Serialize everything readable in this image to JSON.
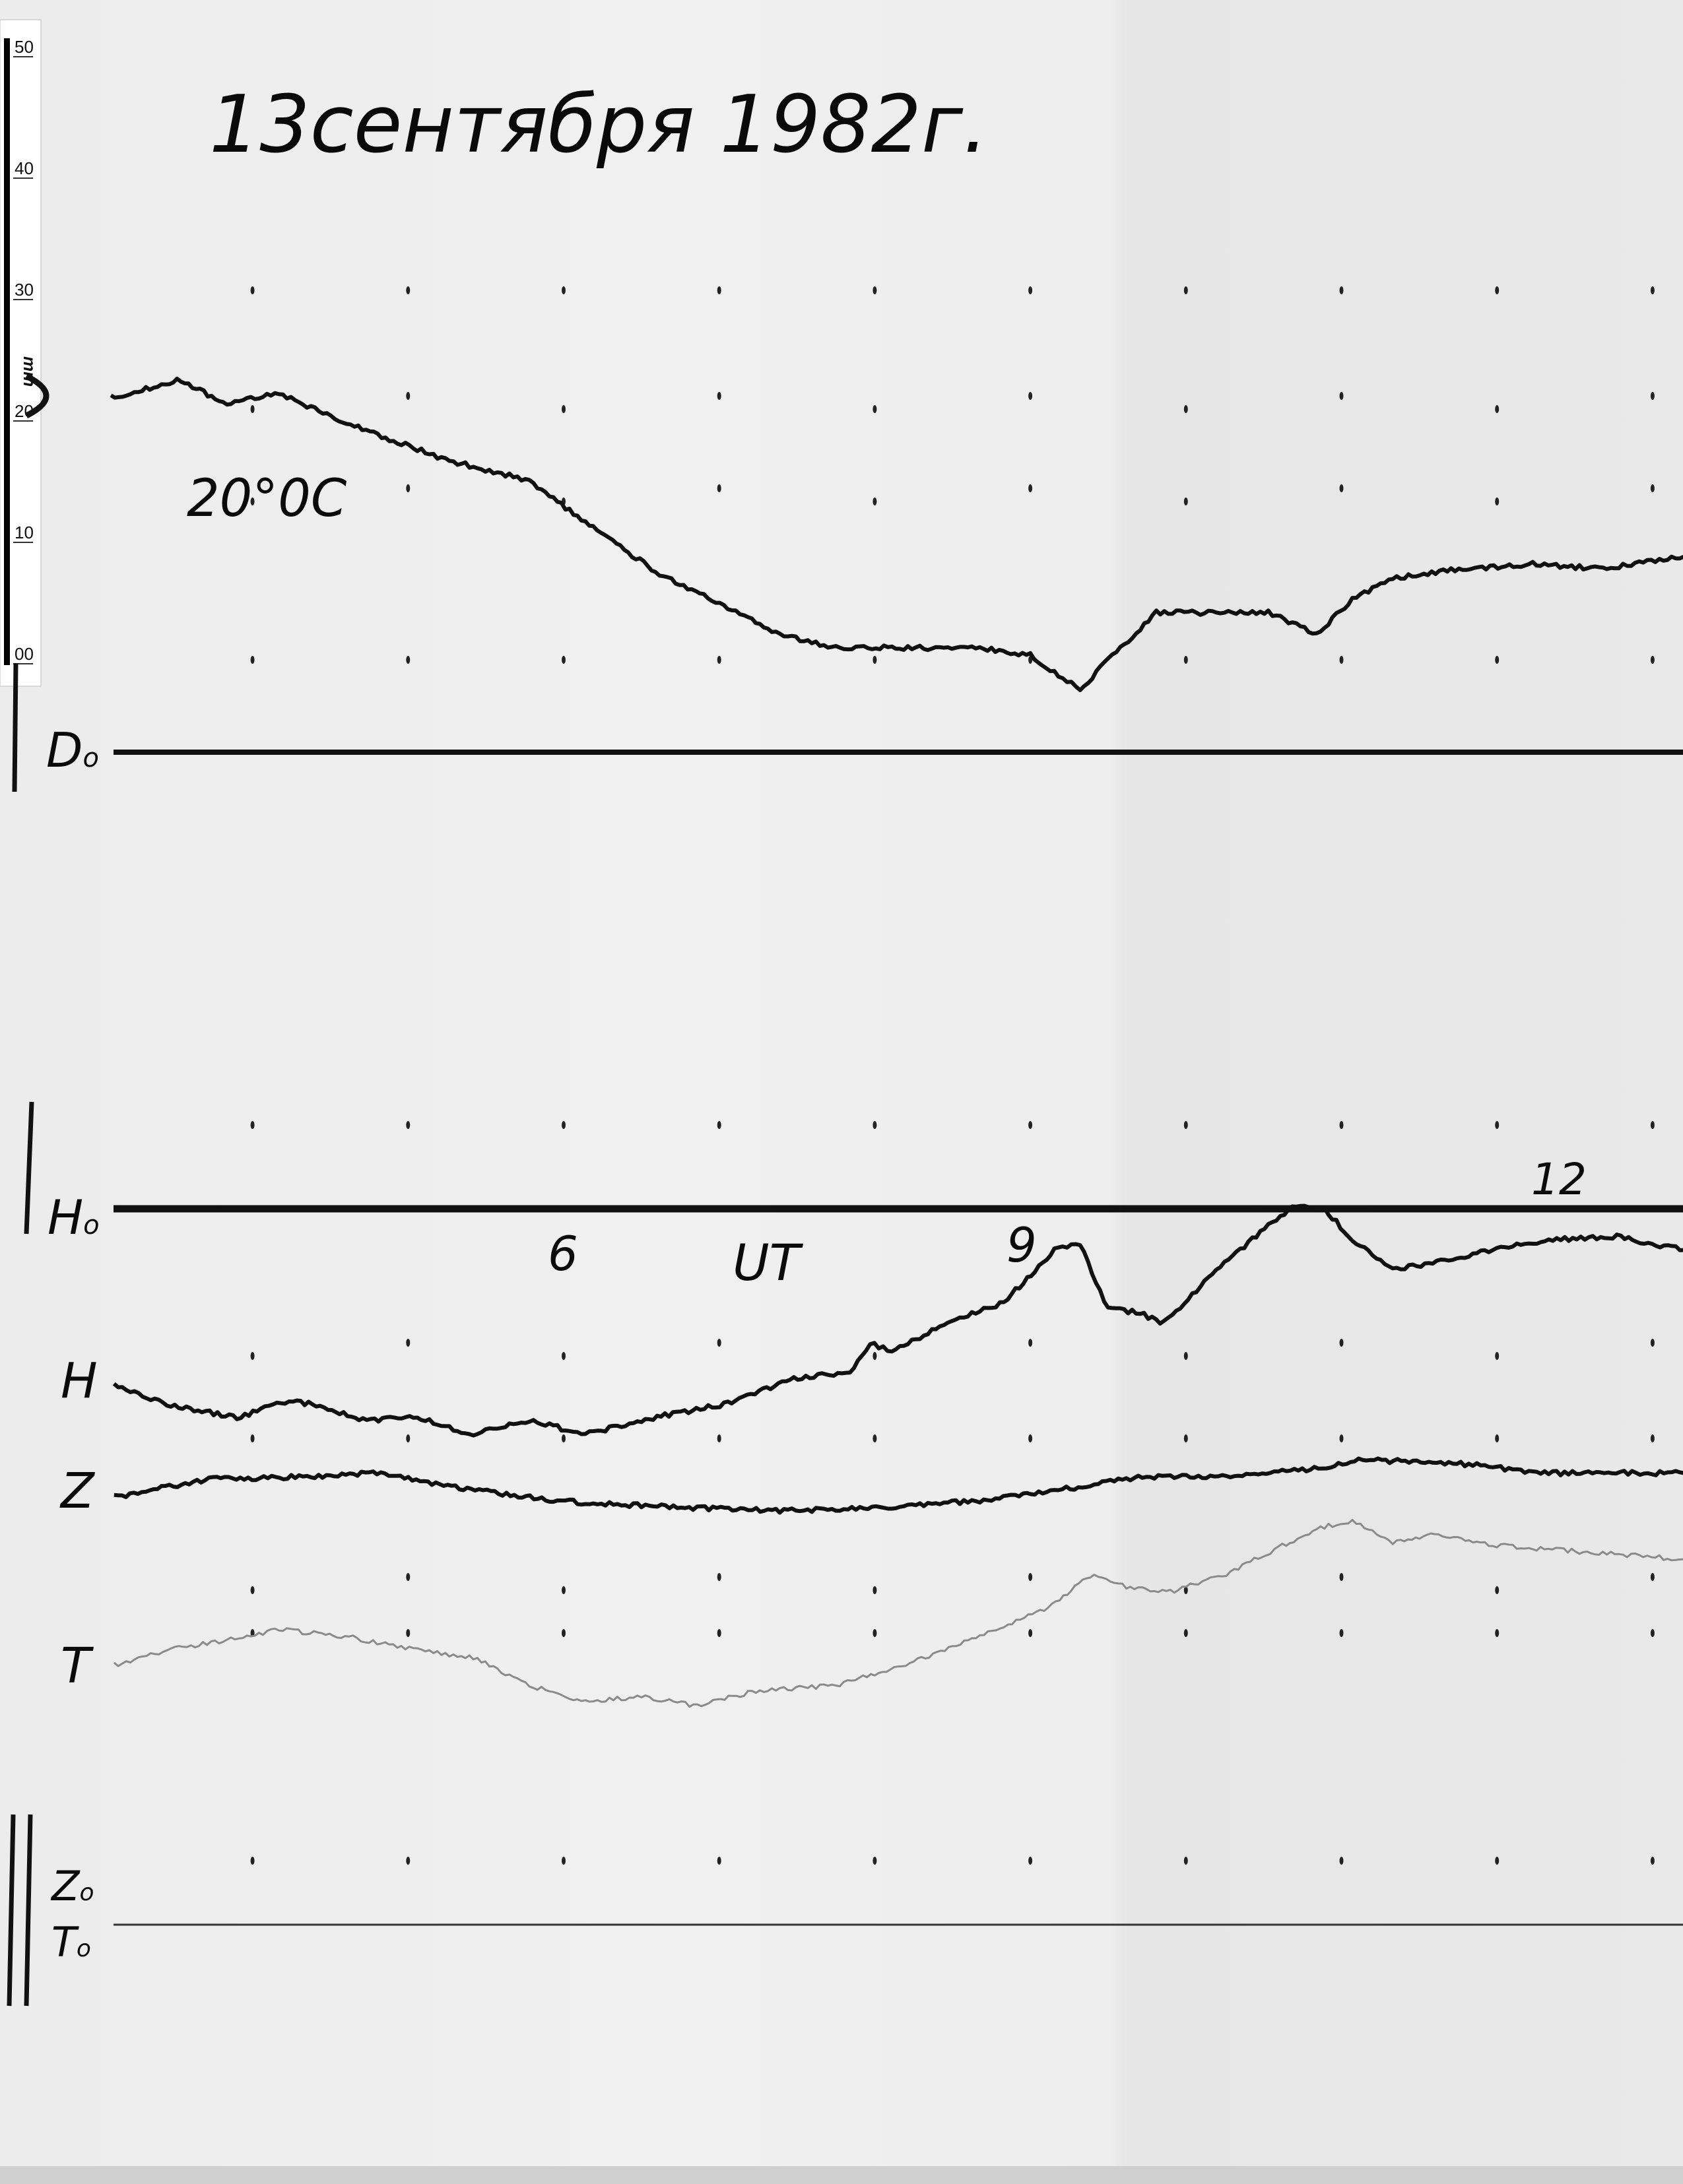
{
  "chart_data": {
    "type": "line",
    "title": "13сентября 1982г.",
    "temperature_note": "20°0C",
    "time_unit_label": "UT",
    "x_tick_labels": [
      "6",
      "9",
      "12"
    ],
    "x_ticks_hours": [
      6,
      9,
      12
    ],
    "xlim": [
      3.1,
      13.2
    ],
    "y_unit": "mm",
    "grid": false,
    "ruler": {
      "unit": "mm",
      "labels": [
        "50",
        "40",
        "30",
        "20",
        "10",
        "00"
      ],
      "values": [
        50,
        40,
        30,
        20,
        10,
        0
      ]
    },
    "baselines": [
      {
        "name": "D₀",
        "label_main": "D",
        "label_sub": "o"
      },
      {
        "name": "H₀",
        "label_main": "H",
        "label_sub": "o"
      },
      {
        "name": "Z₀ T₀",
        "label_main": "Z",
        "label_sub": "o",
        "label2_main": "T",
        "label2_sub": "o"
      }
    ],
    "series": [
      {
        "name": "D",
        "baseline": "D₀",
        "color": "#111111",
        "x": [
          3.09,
          3.54,
          3.81,
          4.17,
          4.53,
          4.88,
          5.24,
          5.78,
          6.14,
          6.59,
          7.03,
          7.39,
          7.75,
          8.11,
          8.65,
          9.0,
          9.18,
          9.32,
          9.45,
          9.81,
          10.17,
          10.53,
          10.84,
          11.07,
          11.33,
          11.78,
          12.23,
          12.68,
          13.2
        ],
        "y": [
          29.2,
          30.7,
          28.7,
          29.6,
          27.5,
          25.8,
          24.1,
          22.4,
          18.9,
          14.9,
          12.0,
          9.7,
          8.6,
          8.6,
          8.6,
          8.0,
          6.3,
          5.2,
          6.9,
          11.5,
          11.5,
          11.5,
          9.7,
          12.6,
          14.3,
          15.1,
          15.5,
          15.1,
          16.1
        ]
      },
      {
        "name": "H",
        "baseline": "H₀",
        "color": "#111111",
        "x": [
          3.11,
          3.45,
          3.9,
          4.26,
          4.71,
          5.06,
          5.42,
          5.78,
          6.14,
          6.5,
          7.03,
          7.48,
          7.84,
          7.97,
          8.11,
          8.47,
          8.83,
          9.18,
          9.32,
          9.5,
          9.68,
          9.86,
          10.17,
          10.53,
          10.71,
          10.89,
          11.07,
          11.33,
          11.69,
          12.05,
          12.41,
          12.77,
          13.2
        ],
        "y": [
          -14.6,
          -16.1,
          -17.2,
          -15.7,
          -17.4,
          -17.2,
          -18.6,
          -17.4,
          -18.6,
          -17.4,
          -16.1,
          -14.0,
          -13.4,
          -11.1,
          -11.7,
          -9.4,
          -7.7,
          -3.1,
          -2.9,
          -8.3,
          -8.5,
          -9.4,
          -5.4,
          -1.4,
          0.3,
          0.0,
          -2.5,
          -5.0,
          -4.2,
          -3.1,
          -2.5,
          -2.3,
          -3.4
        ]
      },
      {
        "name": "Z",
        "baseline": "Z₀ T₀",
        "color": "#111111",
        "x": [
          3.11,
          3.72,
          4.35,
          4.8,
          5.33,
          5.96,
          6.68,
          7.39,
          7.93,
          8.65,
          9.18,
          9.72,
          10.26,
          10.8,
          11.11,
          11.51,
          11.87,
          12.23,
          13.2
        ],
        "y": [
          35.2,
          36.7,
          36.9,
          37.2,
          36.0,
          34.9,
          34.4,
          34.1,
          34.3,
          34.9,
          35.8,
          36.9,
          36.9,
          37.5,
          38.3,
          38.1,
          37.9,
          37.2,
          37.2
        ]
      },
      {
        "name": "T",
        "baseline": "Z₀ T₀",
        "color": "#8a8a8a",
        "x": [
          3.11,
          3.45,
          3.81,
          4.17,
          4.62,
          5.06,
          5.42,
          5.78,
          6.14,
          6.5,
          6.86,
          7.21,
          7.75,
          8.2,
          8.65,
          9.09,
          9.41,
          9.54,
          9.9,
          10.26,
          10.62,
          10.84,
          11.07,
          11.33,
          11.6,
          11.87,
          12.23,
          12.68,
          13.2
        ],
        "y": [
          21.4,
          22.6,
          23.4,
          24.3,
          23.7,
          22.6,
          22.0,
          19.7,
          18.4,
          18.8,
          18.0,
          19.2,
          19.7,
          21.4,
          23.7,
          26.0,
          28.9,
          28.0,
          27.4,
          28.9,
          31.2,
          32.6,
          33.3,
          31.4,
          32.3,
          31.4,
          31.0,
          30.6,
          30.1
        ]
      }
    ]
  }
}
